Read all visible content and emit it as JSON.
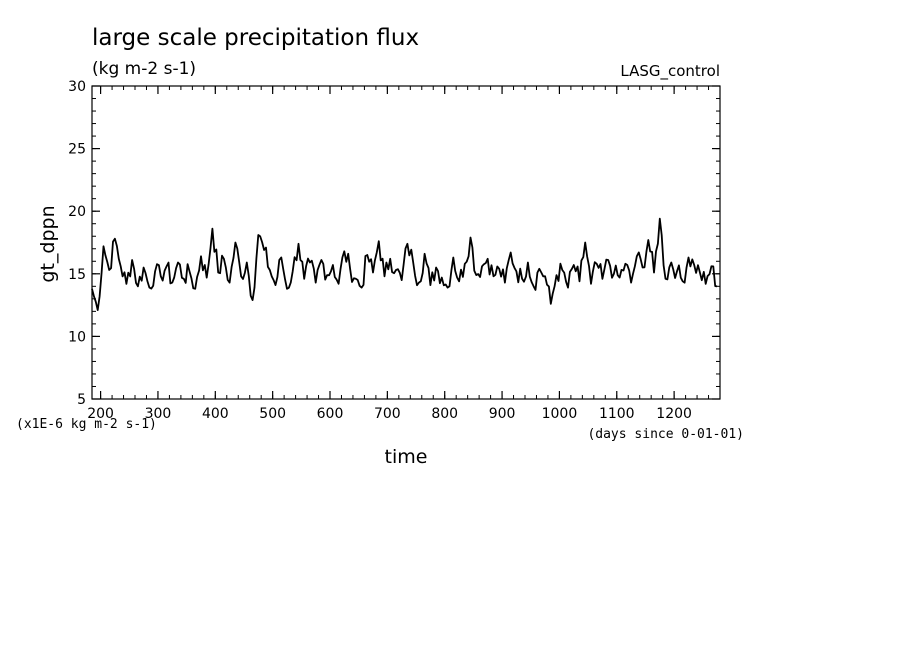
{
  "chart_data": {
    "type": "line",
    "title": "large scale precipitation flux",
    "subtitle": "(kg m-2 s-1)",
    "run_label": "LASG_control",
    "xlabel": "time",
    "ylabel": "gt_dppn",
    "x_unit": "(days since 0-01-01)",
    "y_unit": "(x1E-6 kg m-2 s-1)",
    "xlim": [
      185,
      1280
    ],
    "ylim": [
      5,
      30
    ],
    "xticks": [
      200,
      300,
      400,
      500,
      600,
      700,
      800,
      900,
      1000,
      1100,
      1200
    ],
    "yticks": [
      5,
      10,
      15,
      20,
      25,
      30
    ],
    "grid": false,
    "series": [
      {
        "x": [
          185,
          195,
          205,
          215,
          225,
          235,
          245,
          255,
          265,
          275,
          285,
          295,
          305,
          315,
          325,
          335,
          345,
          355,
          365,
          375,
          385,
          395,
          405,
          415,
          425,
          435,
          445,
          455,
          465,
          475,
          485,
          495,
          505,
          515,
          525,
          535,
          545,
          555,
          565,
          575,
          585,
          595,
          605,
          615,
          625,
          635,
          645,
          655,
          665,
          675,
          685,
          695,
          705,
          715,
          725,
          735,
          745,
          755,
          765,
          775,
          785,
          795,
          805,
          815,
          825,
          835,
          845,
          855,
          865,
          875,
          885,
          895,
          905,
          915,
          925,
          935,
          945,
          955,
          965,
          975,
          985,
          995,
          1005,
          1015,
          1025,
          1035,
          1045,
          1055,
          1065,
          1075,
          1085,
          1095,
          1105,
          1115,
          1125,
          1135,
          1145,
          1155,
          1165,
          1175,
          1185,
          1195,
          1205,
          1215,
          1225,
          1235,
          1245,
          1255,
          1265,
          1275
        ],
        "values": [
          13.8,
          12.1,
          17.2,
          15.3,
          17.8,
          15.6,
          14.2,
          16.1,
          14.0,
          15.5,
          13.9,
          15.2,
          14.8,
          15.6,
          14.3,
          15.9,
          14.6,
          15.2,
          13.8,
          16.4,
          14.7,
          18.6,
          15.1,
          16.2,
          14.3,
          17.5,
          14.8,
          15.9,
          12.9,
          18.1,
          16.9,
          15.3,
          14.1,
          16.3,
          13.8,
          15.2,
          17.4,
          14.6,
          15.9,
          14.3,
          16.1,
          14.9,
          15.7,
          14.2,
          16.8,
          15.4,
          14.6,
          13.9,
          16.5,
          15.1,
          17.6,
          14.8,
          16.2,
          15.3,
          14.5,
          17.4,
          15.9,
          14.3,
          16.6,
          14.1,
          15.5,
          14.7,
          13.9,
          16.3,
          14.4,
          15.8,
          17.9,
          14.9,
          15.6,
          16.2,
          14.8,
          15.4,
          14.3,
          16.7,
          15.2,
          14.6,
          15.9,
          14.0,
          15.4,
          14.8,
          12.6,
          14.9,
          15.3,
          13.9,
          15.7,
          14.4,
          17.5,
          14.2,
          15.8,
          14.6,
          16.1,
          15.0,
          14.7,
          15.8,
          14.3,
          16.4,
          15.5,
          17.7,
          15.1,
          19.4,
          14.6,
          15.9,
          15.2,
          14.4,
          16.3,
          15.7,
          15.1,
          14.2,
          15.6,
          14.0
        ]
      }
    ]
  }
}
